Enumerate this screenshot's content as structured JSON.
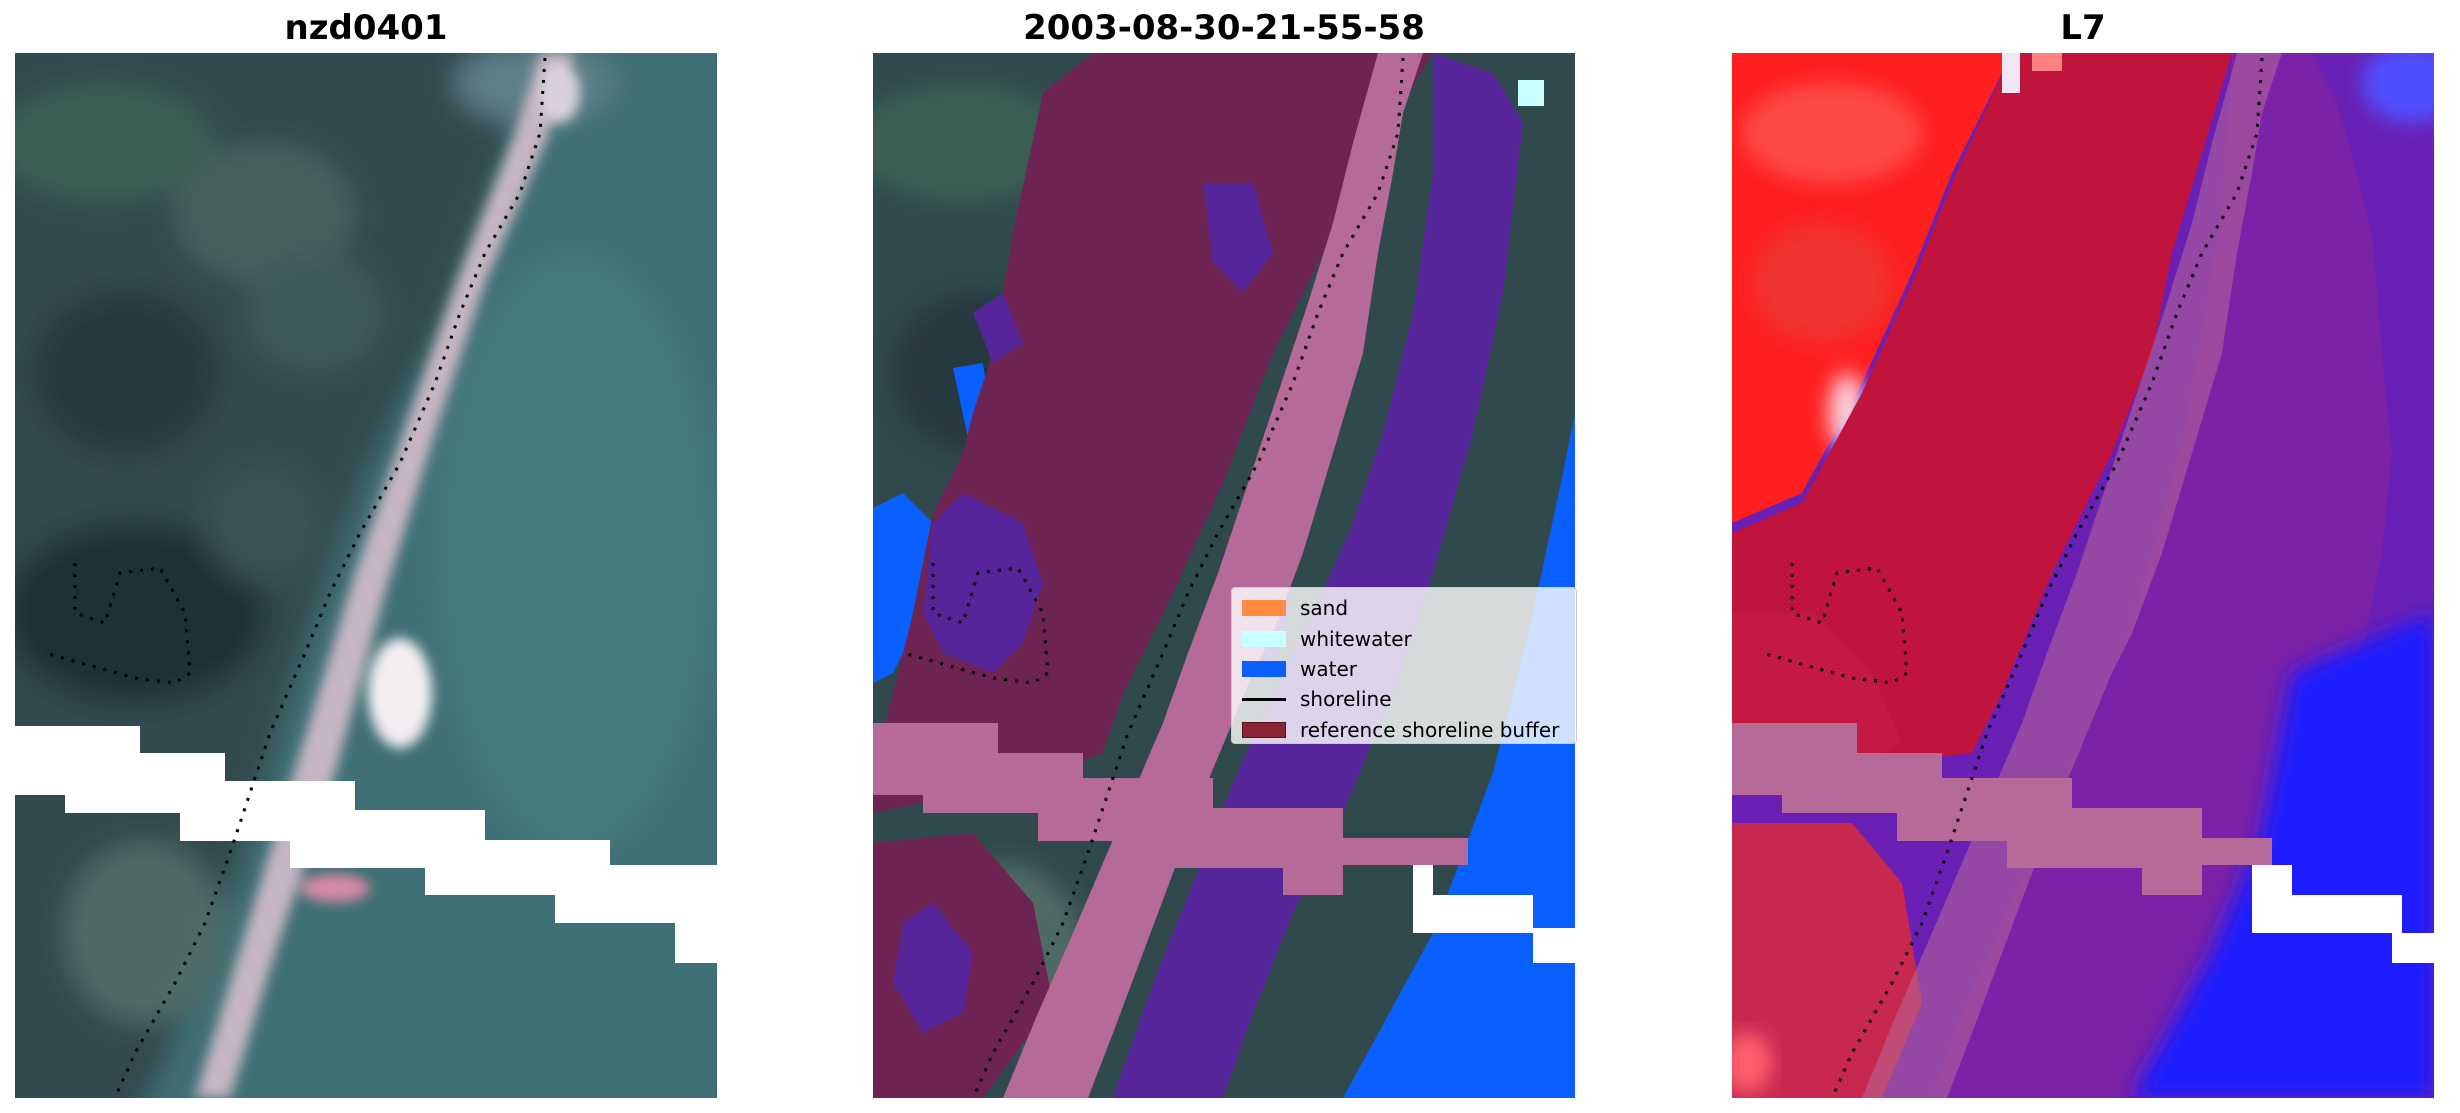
{
  "panels": [
    {
      "title": "nzd0401",
      "content": "RGB satellite image with reference shoreline (dotted)"
    },
    {
      "title": "2003-08-30-21-55-58",
      "content": "classified image overlay"
    },
    {
      "title": "L7",
      "content": "MNDWI index image"
    }
  ],
  "legend": {
    "items": [
      {
        "label": "sand",
        "color": "#ff8c40",
        "kind": "patch"
      },
      {
        "label": "whitewater",
        "color": "#c8ffff",
        "kind": "patch"
      },
      {
        "label": "water",
        "color": "#0a5fff",
        "kind": "patch"
      },
      {
        "label": "shoreline",
        "color": "#000000",
        "kind": "line"
      },
      {
        "label": "reference shoreline buffer",
        "color": "#8b2535",
        "kind": "patch"
      }
    ]
  },
  "colors": {
    "land_dark": "#2f4a4e",
    "sea": "#3f7075",
    "beach": "#b8a9b6",
    "buffer": "#b66a98",
    "land_class": "#6e2453",
    "sea_class": "#57259a",
    "index_land": "#ff1f1f",
    "index_mid": "#c0143c",
    "index_water": "#6a20b4",
    "index_deep": "#1616ff"
  }
}
